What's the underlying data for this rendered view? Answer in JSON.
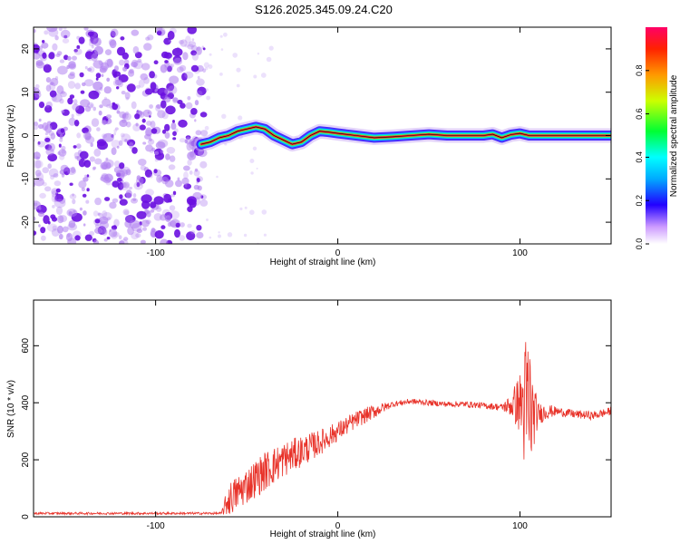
{
  "title": "S126.2025.345.09.24.C20",
  "colors": {
    "signal_line": "#e8332a",
    "noise_dots": "#8a2be2",
    "axis": "#000000"
  },
  "chart_data": [
    {
      "type": "heatmap",
      "xlabel": "Height of straight line (km)",
      "ylabel": "Frequency (Hz)",
      "xlim": [
        -167,
        150
      ],
      "ylim": [
        -25,
        25
      ],
      "xticks": [
        -100,
        0,
        100
      ],
      "yticks": [
        -20,
        -10,
        0,
        10,
        20
      ],
      "grid": false,
      "noise_region_x": [
        -167,
        -73
      ],
      "ridge": {
        "x": [
          -75,
          -70,
          -65,
          -60,
          -55,
          -50,
          -45,
          -40,
          -35,
          -30,
          -25,
          -20,
          -15,
          -10,
          -5,
          0,
          10,
          20,
          30,
          40,
          50,
          60,
          70,
          80,
          85,
          90,
          95,
          100,
          105,
          110,
          120,
          130,
          140,
          150
        ],
        "y": [
          -2,
          -1.5,
          -0.5,
          0,
          1,
          1.5,
          2,
          1.5,
          0,
          -1,
          -2,
          -1.5,
          0,
          1,
          0.8,
          0.5,
          0,
          -0.5,
          -0.3,
          0,
          0.3,
          0,
          0,
          0,
          0.3,
          -0.5,
          0.2,
          0.5,
          0,
          0,
          0,
          0,
          0,
          0
        ]
      },
      "colorbar": {
        "label": "Normalized spectral amplitude",
        "range": [
          0,
          1
        ],
        "ticks": [
          "0.0",
          "0.2",
          "0.4",
          "0.6",
          "0.8"
        ]
      }
    },
    {
      "type": "line",
      "xlabel": "Height of straight line (km)",
      "ylabel": "SNR (10 * v/v)",
      "xlim": [
        -167,
        150
      ],
      "ylim": [
        0,
        760
      ],
      "xticks": [
        -100,
        0,
        100
      ],
      "yticks": [
        0,
        200,
        400,
        600
      ],
      "grid": false,
      "envelope": {
        "x": [
          -167,
          -64,
          -60,
          -50,
          -40,
          -30,
          -20,
          -10,
          0,
          10,
          20,
          30,
          40,
          50,
          60,
          70,
          80,
          90,
          95,
          100,
          103,
          105,
          107,
          110,
          115,
          120,
          130,
          140,
          150
        ],
        "y": [
          12,
          12,
          60,
          110,
          160,
          200,
          230,
          260,
          300,
          340,
          370,
          395,
          405,
          400,
          395,
          395,
          390,
          385,
          390,
          400,
          380,
          370,
          360,
          360,
          370,
          370,
          360,
          355,
          370
        ]
      },
      "noise_amplitude": {
        "x": [
          -167,
          -64,
          -60,
          -40,
          -20,
          0,
          20,
          30,
          60,
          90,
          95,
          100,
          103,
          105,
          107,
          110,
          120,
          150
        ],
        "y": [
          4,
          4,
          60,
          70,
          55,
          35,
          25,
          10,
          10,
          12,
          40,
          110,
          260,
          330,
          130,
          40,
          15,
          15
        ]
      },
      "samples": 1300
    }
  ]
}
